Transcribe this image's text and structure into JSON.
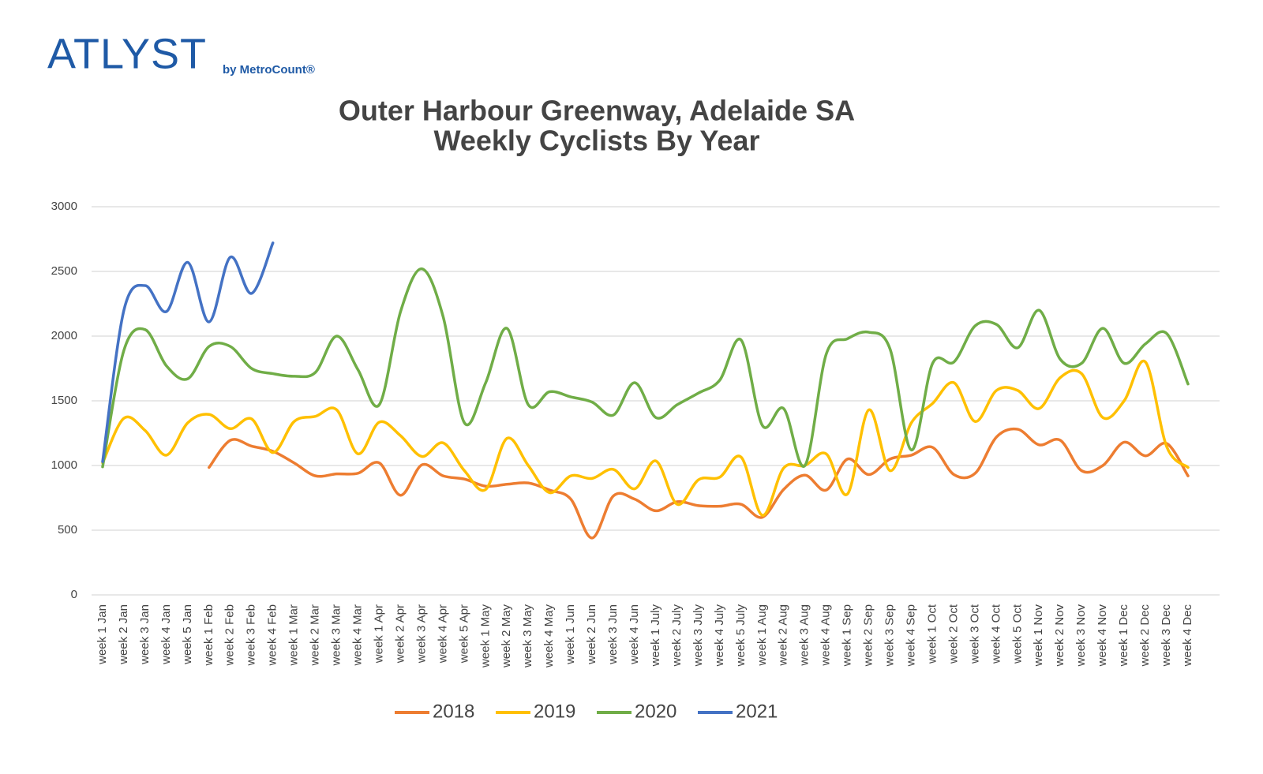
{
  "logo": {
    "brand": "ATLYST",
    "byline": "by MetroCount®"
  },
  "chart_data": {
    "type": "line",
    "title": "Outer Harbour Greenway, Adelaide SA",
    "subtitle": "Weekly Cyclists By Year",
    "categories": [
      "week 1 Jan",
      "week 2 Jan",
      "week 3 Jan",
      "week 4 Jan",
      "week 5 Jan",
      "week 1 Feb",
      "week 2 Feb",
      "week 3 Feb",
      "week 4 Feb",
      "week 1 Mar",
      "week 2 Mar",
      "week 3 Mar",
      "week 4 Mar",
      "week 1 Apr",
      "week 2 Apr",
      "week 3 Apr",
      "week 4 Apr",
      "week 5 Apr",
      "week 1 May",
      "week 2 May",
      "week 3 May",
      "week 4 May",
      "week 1 Jun",
      "week 2 Jun",
      "week 3 Jun",
      "week 4 Jun",
      "week 1 July",
      "week 2 July",
      "week 3 July",
      "week 4 July",
      "week 5 July",
      "week 1 Aug",
      "week 2 Aug",
      "week 3 Aug",
      "week 4 Aug",
      "week 1 Sep",
      "week 2 Sep",
      "week 3 Sep",
      "week 4 Sep",
      "week 1 Oct",
      "week 2 Oct",
      "week 3 Oct",
      "week 4 Oct",
      "week 5 Oct",
      "week 1 Nov",
      "week 2 Nov",
      "week 3 Nov",
      "week 4 Nov",
      "week 1 Dec",
      "week 2 Dec",
      "week 3 Dec",
      "week 4 Dec"
    ],
    "series": [
      {
        "name": "2018",
        "color": "#ed7d31",
        "values": [
          null,
          null,
          null,
          null,
          null,
          985,
          1195,
          1150,
          1110,
          1020,
          920,
          935,
          940,
          1020,
          770,
          1005,
          920,
          895,
          840,
          855,
          865,
          810,
          740,
          440,
          765,
          740,
          650,
          720,
          690,
          685,
          700,
          600,
          815,
          925,
          810,
          1050,
          930,
          1050,
          1080,
          1140,
          930,
          940,
          1220,
          1280,
          1160,
          1195,
          960,
          1000,
          1180,
          1075,
          1170,
          920
        ]
      },
      {
        "name": "2019",
        "color": "#ffc000",
        "values": [
          1020,
          1365,
          1270,
          1080,
          1330,
          1395,
          1285,
          1360,
          1100,
          1340,
          1380,
          1430,
          1090,
          1335,
          1230,
          1070,
          1175,
          960,
          815,
          1210,
          1000,
          790,
          920,
          900,
          970,
          820,
          1035,
          700,
          890,
          910,
          1065,
          615,
          980,
          1000,
          1090,
          780,
          1430,
          960,
          1330,
          1480,
          1640,
          1340,
          1580,
          1580,
          1440,
          1680,
          1710,
          1370,
          1500,
          1800,
          1145,
          985
        ]
      },
      {
        "name": "2020",
        "color": "#70ad47",
        "values": [
          990,
          1890,
          2050,
          1770,
          1670,
          1920,
          1920,
          1750,
          1710,
          1690,
          1720,
          2000,
          1740,
          1470,
          2190,
          2520,
          2150,
          1330,
          1640,
          2060,
          1470,
          1570,
          1530,
          1490,
          1390,
          1640,
          1370,
          1470,
          1560,
          1660,
          1970,
          1310,
          1440,
          1000,
          1860,
          1980,
          2030,
          1900,
          1120,
          1790,
          1800,
          2080,
          2090,
          1910,
          2200,
          1820,
          1790,
          2060,
          1790,
          1940,
          2020,
          1630
        ]
      },
      {
        "name": "2021",
        "color": "#4472c4",
        "values": [
          1030,
          2200,
          2390,
          2190,
          2570,
          2110,
          2610,
          2330,
          2720,
          null,
          null,
          null,
          null,
          null,
          null,
          null,
          null,
          null,
          null,
          null,
          null,
          null,
          null,
          null,
          null,
          null,
          null,
          null,
          null,
          null,
          null,
          null,
          null,
          null,
          null,
          null,
          null,
          null,
          null,
          null,
          null,
          null,
          null,
          null,
          null,
          null,
          null,
          null,
          null,
          null,
          null,
          null
        ]
      }
    ],
    "ylim": [
      0,
      3000
    ],
    "yticks": [
      0,
      500,
      1000,
      1500,
      2000,
      2500,
      3000
    ],
    "grid": true,
    "legend": "bottom"
  }
}
